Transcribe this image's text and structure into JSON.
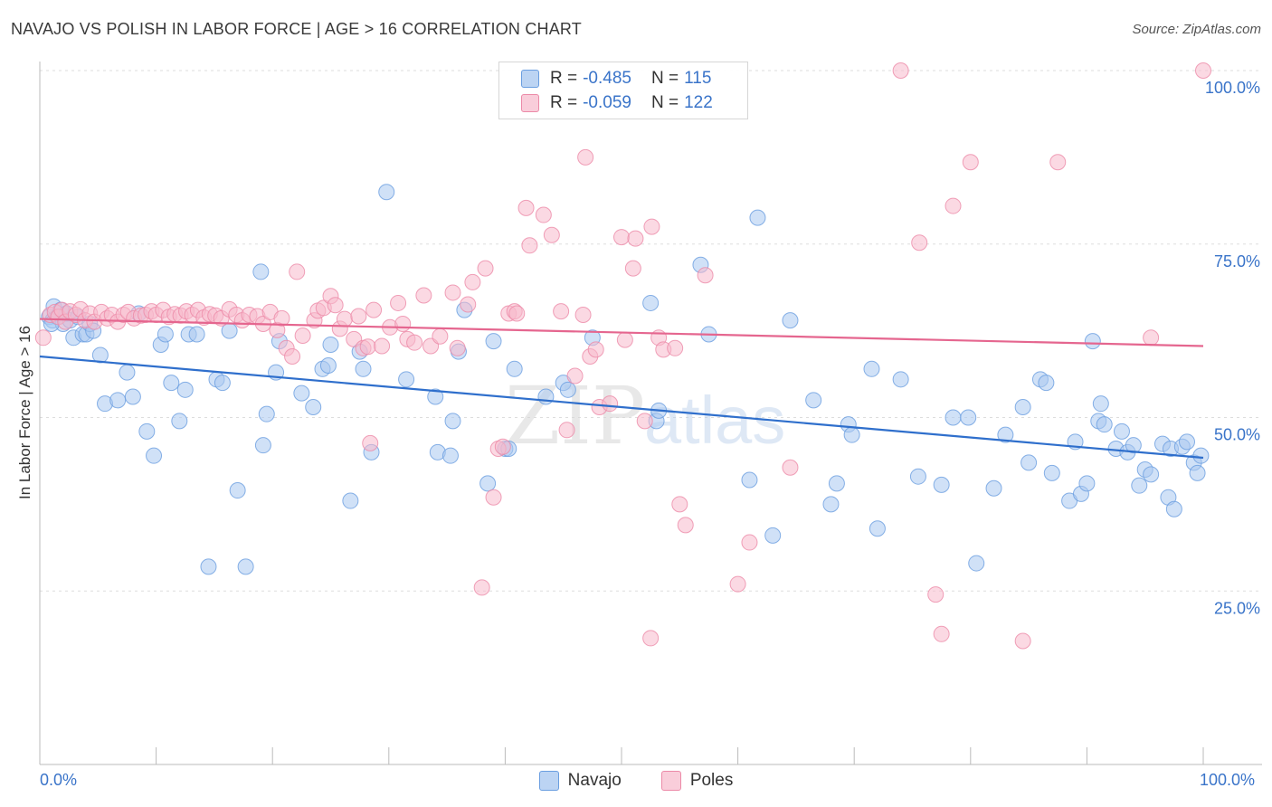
{
  "title": "NAVAJO VS POLISH IN LABOR FORCE | AGE > 16 CORRELATION CHART",
  "source": "Source: ZipAtlas.com",
  "watermark": {
    "zip": "ZIP",
    "atlas": "atlas"
  },
  "legend": {
    "r_label": "R =",
    "n_label": "N =",
    "rows": [
      {
        "r": "-0.485",
        "n": "115"
      },
      {
        "r": "-0.059",
        "n": "122"
      }
    ]
  },
  "colors": {
    "navajo_fill": "#a9c8f0",
    "navajo_stroke": "#6a9ee0",
    "navajo_line": "#2f6fcc",
    "poles_fill": "#f7b9cc",
    "poles_stroke": "#ec8aa8",
    "poles_line": "#e5668f",
    "axis_text": "#3a74c9",
    "grid": "#dddddd"
  },
  "chart_data": {
    "type": "scatter",
    "title": "NAVAJO VS POLISH IN LABOR FORCE | AGE > 16 CORRELATION CHART",
    "xlabel": "",
    "ylabel": "In Labor Force | Age > 16",
    "xlim": [
      0,
      100
    ],
    "ylim": [
      0,
      102
    ],
    "x_tick_labels": [
      "0.0%",
      "100.0%"
    ],
    "y_ticks": [
      25,
      50,
      75,
      100
    ],
    "y_tick_labels": [
      "25.0%",
      "50.0%",
      "75.0%",
      "100.0%"
    ],
    "grid": true,
    "legend_position": "top-center",
    "series": [
      {
        "name": "Navajo",
        "R": -0.485,
        "N": 115,
        "trend": [
          [
            0,
            58.8
          ],
          [
            100,
            44.2
          ]
        ],
        "points": [
          [
            0.8,
            64.5
          ],
          [
            1.1,
            64
          ],
          [
            1.2,
            66
          ],
          [
            1.5,
            64.5
          ],
          [
            1.8,
            65.5
          ],
          [
            2,
            63.5
          ],
          [
            2.3,
            65
          ],
          [
            2.6,
            64
          ],
          [
            2.9,
            61.5
          ],
          [
            3.3,
            64.5
          ],
          [
            3.7,
            62
          ],
          [
            4,
            62
          ],
          [
            4.3,
            63.5
          ],
          [
            4.6,
            62.5
          ],
          [
            5.2,
            59
          ],
          [
            5.6,
            52
          ],
          [
            6.7,
            52.5
          ],
          [
            7.5,
            56.5
          ],
          [
            8,
            53
          ],
          [
            8.5,
            65
          ],
          [
            9.2,
            48
          ],
          [
            9.8,
            44.5
          ],
          [
            10.4,
            60.5
          ],
          [
            10.8,
            62
          ],
          [
            11.3,
            55
          ],
          [
            12,
            49.5
          ],
          [
            12.5,
            54
          ],
          [
            12.8,
            62
          ],
          [
            13.5,
            62
          ],
          [
            14.5,
            28.5
          ],
          [
            15.2,
            55.5
          ],
          [
            15.7,
            55
          ],
          [
            16.3,
            62.5
          ],
          [
            17,
            39.5
          ],
          [
            17.7,
            28.5
          ],
          [
            19,
            71
          ],
          [
            19.2,
            46
          ],
          [
            19.5,
            50.5
          ],
          [
            20.3,
            56.5
          ],
          [
            20.6,
            61
          ],
          [
            22.5,
            53.5
          ],
          [
            23.5,
            51.5
          ],
          [
            24.3,
            57
          ],
          [
            24.8,
            57.5
          ],
          [
            25,
            60.5
          ],
          [
            26.7,
            38
          ],
          [
            27.5,
            59.5
          ],
          [
            27.8,
            57
          ],
          [
            28.5,
            45
          ],
          [
            29.8,
            82.5
          ],
          [
            31.5,
            55.5
          ],
          [
            34,
            53
          ],
          [
            34.2,
            45
          ],
          [
            35.3,
            44.5
          ],
          [
            35.5,
            49.5
          ],
          [
            36,
            59.5
          ],
          [
            36.5,
            65.5
          ],
          [
            38.5,
            40.5
          ],
          [
            39,
            61
          ],
          [
            40,
            45.5
          ],
          [
            40.3,
            45.5
          ],
          [
            40.8,
            57
          ],
          [
            43.5,
            53
          ],
          [
            45,
            55
          ],
          [
            45.4,
            54
          ],
          [
            52.5,
            66.5
          ],
          [
            53,
            49.5
          ],
          [
            53.2,
            51
          ],
          [
            56.8,
            72
          ],
          [
            57.5,
            62
          ],
          [
            61,
            41
          ],
          [
            61.7,
            78.8
          ],
          [
            63,
            33
          ],
          [
            64.5,
            64
          ],
          [
            66.5,
            52.5
          ],
          [
            68,
            37.5
          ],
          [
            68.5,
            40.5
          ],
          [
            69.5,
            49
          ],
          [
            69.8,
            47.5
          ],
          [
            71.5,
            57
          ],
          [
            72,
            34
          ],
          [
            74,
            55.5
          ],
          [
            75.5,
            41.5
          ],
          [
            77.5,
            40.3
          ],
          [
            78.5,
            50
          ],
          [
            79.8,
            50
          ],
          [
            80.5,
            29
          ],
          [
            82,
            39.8
          ],
          [
            83,
            47.5
          ],
          [
            84.5,
            51.5
          ],
          [
            85,
            43.5
          ],
          [
            86,
            55.5
          ],
          [
            86.5,
            55
          ],
          [
            87,
            42
          ],
          [
            88.5,
            38
          ],
          [
            89,
            46.5
          ],
          [
            89.5,
            39
          ],
          [
            90,
            40.5
          ],
          [
            90.5,
            61
          ],
          [
            91,
            49.5
          ],
          [
            91.2,
            52
          ],
          [
            91.5,
            49
          ],
          [
            92.5,
            45.5
          ],
          [
            93,
            48
          ],
          [
            93.5,
            45
          ],
          [
            94,
            46
          ],
          [
            94.5,
            40.2
          ],
          [
            95,
            42.5
          ],
          [
            95.5,
            41.8
          ],
          [
            96.5,
            46.2
          ],
          [
            97,
            38.5
          ],
          [
            97.2,
            45.5
          ],
          [
            97.5,
            36.8
          ],
          [
            98.2,
            45.8
          ],
          [
            98.6,
            46.5
          ],
          [
            99.2,
            43.5
          ],
          [
            99.5,
            42
          ],
          [
            99.8,
            44.5
          ],
          [
            1,
            63.5
          ],
          [
            47.5,
            61.5
          ]
        ]
      },
      {
        "name": "Poles",
        "R": -0.059,
        "N": 122,
        "trend": [
          [
            0,
            64.2
          ],
          [
            100,
            60.3
          ]
        ],
        "points": [
          [
            0.3,
            61.5
          ],
          [
            0.9,
            64.8
          ],
          [
            1.3,
            65.2
          ],
          [
            1.6,
            64.5
          ],
          [
            1.9,
            65.5
          ],
          [
            2.2,
            63.8
          ],
          [
            2.6,
            65.3
          ],
          [
            3.1,
            64.8
          ],
          [
            3.5,
            65.6
          ],
          [
            3.9,
            64
          ],
          [
            4.3,
            65
          ],
          [
            4.7,
            63.8
          ],
          [
            5.3,
            65.2
          ],
          [
            5.8,
            64.3
          ],
          [
            6.2,
            64.8
          ],
          [
            6.7,
            63.8
          ],
          [
            7.2,
            64.8
          ],
          [
            7.6,
            65.2
          ],
          [
            8.1,
            64.3
          ],
          [
            8.7,
            64.7
          ],
          [
            9.1,
            64.8
          ],
          [
            9.6,
            65.3
          ],
          [
            10,
            64.8
          ],
          [
            10.6,
            65.5
          ],
          [
            11.1,
            64.5
          ],
          [
            11.6,
            64.9
          ],
          [
            12.1,
            64.7
          ],
          [
            12.6,
            65.3
          ],
          [
            13.1,
            64.8
          ],
          [
            13.6,
            65.5
          ],
          [
            14.1,
            64.4
          ],
          [
            14.6,
            64.9
          ],
          [
            15.1,
            64.7
          ],
          [
            15.6,
            64.3
          ],
          [
            16.3,
            65.6
          ],
          [
            16.9,
            64.8
          ],
          [
            17.4,
            64
          ],
          [
            18,
            64.8
          ],
          [
            18.7,
            64.6
          ],
          [
            19.2,
            63.5
          ],
          [
            19.8,
            65.2
          ],
          [
            20.4,
            62.6
          ],
          [
            20.8,
            64.3
          ],
          [
            21.2,
            60
          ],
          [
            21.7,
            58.8
          ],
          [
            22.1,
            71
          ],
          [
            22.6,
            61.8
          ],
          [
            23.6,
            64
          ],
          [
            23.9,
            65.4
          ],
          [
            24.4,
            65.8
          ],
          [
            25,
            67.5
          ],
          [
            25.4,
            66.2
          ],
          [
            25.8,
            62.8
          ],
          [
            26.2,
            64.2
          ],
          [
            27,
            61.3
          ],
          [
            27.4,
            64.6
          ],
          [
            27.8,
            60
          ],
          [
            28.2,
            60.2
          ],
          [
            28.4,
            46.3
          ],
          [
            28.7,
            65.5
          ],
          [
            29.4,
            60.3
          ],
          [
            30.1,
            63
          ],
          [
            30.8,
            66.5
          ],
          [
            31.2,
            63.5
          ],
          [
            31.6,
            61.3
          ],
          [
            32.2,
            60.8
          ],
          [
            33,
            67.6
          ],
          [
            33.6,
            60.3
          ],
          [
            34.4,
            61.7
          ],
          [
            35.5,
            68
          ],
          [
            35.9,
            60
          ],
          [
            36.8,
            66.3
          ],
          [
            37.2,
            69.5
          ],
          [
            38.3,
            71.5
          ],
          [
            39,
            38.5
          ],
          [
            39.4,
            45.5
          ],
          [
            39.8,
            45.8
          ],
          [
            40.3,
            65
          ],
          [
            40.8,
            65.3
          ],
          [
            41,
            65
          ],
          [
            41.8,
            80.2
          ],
          [
            42.1,
            74.8
          ],
          [
            43.3,
            79.2
          ],
          [
            44,
            76.3
          ],
          [
            44.8,
            65.3
          ],
          [
            45.3,
            48.2
          ],
          [
            46,
            56
          ],
          [
            46.7,
            64.8
          ],
          [
            46.9,
            87.5
          ],
          [
            47.3,
            58.8
          ],
          [
            47.8,
            59.8
          ],
          [
            48.1,
            51.5
          ],
          [
            49,
            52
          ],
          [
            50,
            76
          ],
          [
            50.3,
            61.2
          ],
          [
            51,
            71.5
          ],
          [
            51.2,
            75.8
          ],
          [
            52,
            49.5
          ],
          [
            52.6,
            77.5
          ],
          [
            53.2,
            61.5
          ],
          [
            53.6,
            59.8
          ],
          [
            54.6,
            60
          ],
          [
            55,
            37.5
          ],
          [
            55.5,
            34.5
          ],
          [
            57.2,
            70.5
          ],
          [
            60,
            26
          ],
          [
            61,
            32
          ],
          [
            64.5,
            42.8
          ],
          [
            75.6,
            75.2
          ],
          [
            77,
            24.5
          ],
          [
            77.5,
            18.8
          ],
          [
            78.5,
            80.5
          ],
          [
            80,
            86.8
          ],
          [
            84.5,
            17.8
          ],
          [
            87.5,
            86.8
          ],
          [
            95.5,
            61.5
          ],
          [
            38,
            25.5
          ],
          [
            52.5,
            18.2
          ],
          [
            74,
            100
          ],
          [
            100,
            100
          ]
        ]
      }
    ]
  }
}
